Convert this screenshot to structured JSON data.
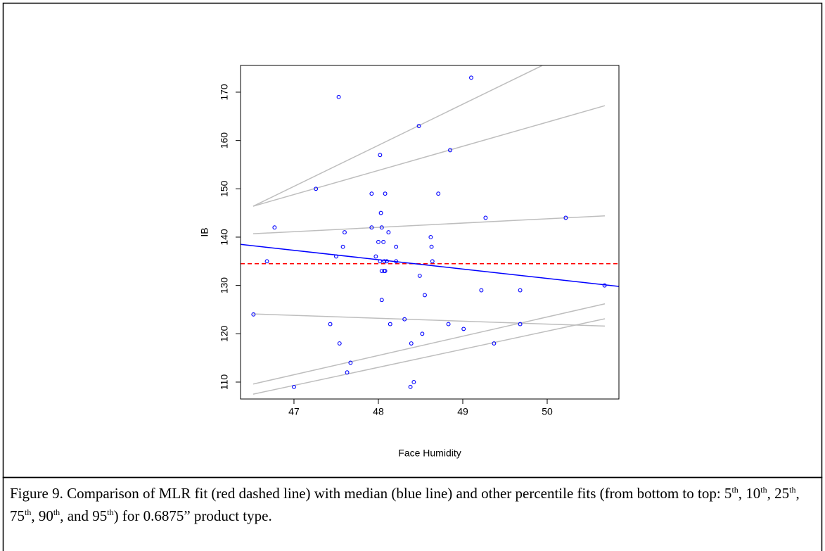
{
  "chart_data": {
    "type": "scatter",
    "xlabel": "Face Humidity",
    "ylabel": "IB",
    "xlim": [
      46.367,
      50.85
    ],
    "ylim": [
      106.5,
      175.53
    ],
    "xticks": [
      47,
      48,
      49,
      50
    ],
    "yticks": [
      110,
      120,
      130,
      140,
      150,
      160,
      170
    ],
    "color": "#0000ff",
    "x": [
      47.53,
      49.1,
      48.48,
      48.02,
      48.85,
      47.26,
      47.92,
      48.08,
      48.71,
      48.03,
      46.77,
      47.92,
      48.04,
      49.27,
      50.22,
      47.6,
      48.12,
      48.62,
      47.58,
      48.21,
      48.63,
      48.0,
      48.06,
      46.68,
      47.5,
      47.97,
      48.02,
      48.07,
      48.1,
      48.21,
      48.64,
      48.04,
      48.08,
      48.07,
      48.49,
      48.55,
      48.04,
      49.22,
      49.68,
      50.68,
      46.52,
      48.31,
      47.43,
      48.14,
      48.83,
      49.68,
      49.01,
      48.52,
      47.54,
      48.39,
      49.37,
      47.67,
      47.63,
      48.42,
      48.38,
      47.0
    ],
    "y": [
      169,
      173,
      163,
      157,
      158,
      150,
      149,
      149,
      149,
      145,
      142,
      142,
      142,
      144,
      144,
      141,
      141,
      140,
      138,
      138,
      138,
      139,
      139,
      135,
      136,
      136,
      135,
      135,
      135,
      135,
      135,
      133,
      133,
      133,
      132,
      128,
      127,
      129,
      129,
      130,
      124,
      123,
      122,
      122,
      122,
      122,
      121,
      120,
      118,
      118,
      118,
      114,
      112,
      110,
      109,
      109
    ],
    "lines": [
      {
        "color": "#ff0000",
        "dash": true,
        "x": [
          46.367,
          50.85
        ],
        "y": [
          134.5,
          134.5
        ]
      },
      {
        "color": "#0000ff",
        "dash": false,
        "x": [
          46.367,
          50.85
        ],
        "y": [
          138.5,
          129.8
        ]
      },
      {
        "color": "#bebebe",
        "dash": false,
        "x": [
          46.517,
          49.94
        ],
        "y": [
          146.4,
          175.5
        ]
      },
      {
        "color": "#bebebe",
        "dash": false,
        "x": [
          46.517,
          50.683
        ],
        "y": [
          146.4,
          167.2
        ]
      },
      {
        "color": "#bebebe",
        "dash": false,
        "x": [
          46.517,
          50.683
        ],
        "y": [
          140.7,
          144.4
        ]
      },
      {
        "color": "#bebebe",
        "dash": false,
        "x": [
          46.517,
          50.683
        ],
        "y": [
          124.1,
          121.6
        ]
      },
      {
        "color": "#bebebe",
        "dash": false,
        "x": [
          46.517,
          50.683
        ],
        "y": [
          109.6,
          126.2
        ]
      },
      {
        "color": "#bebebe",
        "dash": false,
        "x": [
          46.517,
          50.683
        ],
        "y": [
          107.5,
          123.1
        ]
      }
    ]
  },
  "caption": [
    "Figure 9.  Comparison of MLR fit (red dashed line) with median (blue line) and other percentile fits (from bottom to top: 5",
    "th",
    ", 10",
    "th",
    ", 25",
    "th",
    ", 75",
    "th",
    ", 90",
    "th",
    ", and 95",
    "th",
    ") for 0.6875” product type."
  ]
}
